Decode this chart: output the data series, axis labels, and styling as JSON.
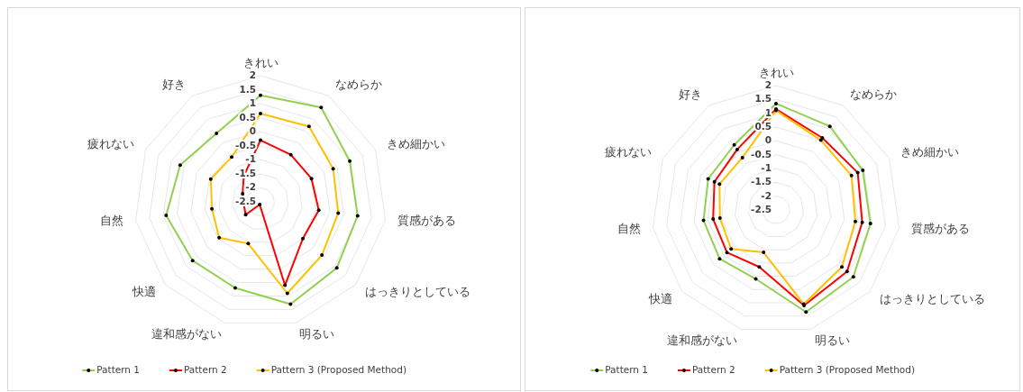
{
  "chart_data": [
    {
      "type": "radar",
      "categories": [
        "きれい",
        "なめらか",
        "きめ細かい",
        "質感がある",
        "はっきりとしている",
        "明るい",
        "違和感がない",
        "快適",
        "自然",
        "疲れない",
        "好き"
      ],
      "ylim": [
        -2.5,
        2
      ],
      "yticks": [
        -2.5,
        -2,
        -1.5,
        -1,
        -0.5,
        0,
        0.5,
        1,
        1.5,
        2
      ],
      "grid": true,
      "legend": "bottom",
      "marker": "circle",
      "series": [
        {
          "name": "Pattern 1",
          "color": "#92d050",
          "values": [
            1.3,
            1.5,
            1.0,
            1.0,
            1.1,
            1.3,
            0.7,
            0.7,
            0.9,
            0.65,
            0.4
          ]
        },
        {
          "name": "Pattern 2",
          "color": "#ff0000",
          "values": [
            -0.3,
            -0.5,
            -0.5,
            -0.4,
            -0.5,
            0.6,
            -2.4,
            -1.8,
            -1.9,
            -1.8,
            -1.4
          ]
        },
        {
          "name": "Pattern 3 (Proposed Method)",
          "color": "#ffc000",
          "values": [
            0.65,
            0.7,
            0.35,
            0.3,
            0.4,
            0.9,
            -0.95,
            -0.55,
            -0.75,
            -0.55,
            -0.6
          ]
        }
      ]
    },
    {
      "type": "radar",
      "categories": [
        "きれい",
        "なめらか",
        "きめ細かい",
        "質感がある",
        "はっきりとしている",
        "明るい",
        "違和感がない",
        "快適",
        "自然",
        "疲れない",
        "好き"
      ],
      "ylim": [
        -2.5,
        2
      ],
      "yticks": [
        -2.5,
        -2,
        -1.5,
        -1,
        -0.5,
        0,
        0.5,
        1,
        1.5,
        2
      ],
      "grid": true,
      "legend": "bottom",
      "marker": "circle",
      "series": [
        {
          "name": "Pattern 1",
          "color": "#92d050",
          "values": [
            1.35,
            1.1,
            0.95,
            0.95,
            1.2,
            1.35,
            0.1,
            0.2,
            0.15,
            0.2,
            0.3
          ]
        },
        {
          "name": "Pattern 2",
          "color": "#ff0000",
          "values": [
            1.15,
            0.6,
            0.75,
            0.65,
            0.9,
            1.1,
            -0.35,
            -0.15,
            -0.2,
            -0.05,
            0.1
          ]
        },
        {
          "name": "Pattern 3 (Proposed Method)",
          "color": "#ffc000",
          "values": [
            1.1,
            0.5,
            0.5,
            0.4,
            0.65,
            1.05,
            -0.9,
            -0.35,
            -0.45,
            -0.25,
            -0.25
          ]
        }
      ]
    }
  ]
}
